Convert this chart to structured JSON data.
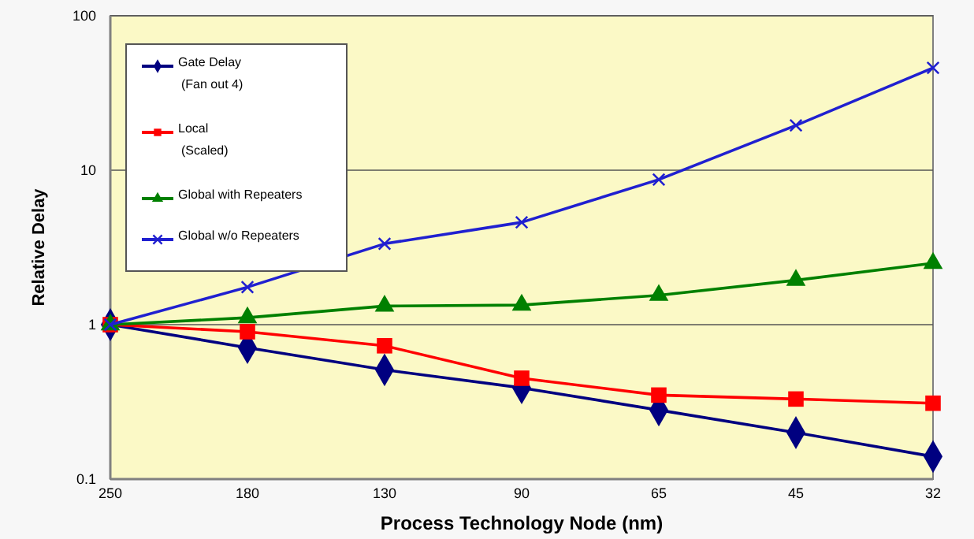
{
  "chart_data": {
    "type": "line",
    "xlabel": "Process Technology Node (nm)",
    "ylabel": "Relative Delay",
    "categories": [
      "250",
      "180",
      "130",
      "90",
      "65",
      "45",
      "32"
    ],
    "series": [
      {
        "name": "Gate Delay (Fan out 4)",
        "color": "#000080",
        "marker": "diamond",
        "values": [
          1,
          0.71,
          0.51,
          0.39,
          0.28,
          0.2,
          0.14
        ]
      },
      {
        "name": "Local (Scaled)",
        "color": "#ff0000",
        "marker": "square",
        "values": [
          1,
          0.9,
          0.73,
          0.45,
          0.35,
          0.33,
          0.31
        ]
      },
      {
        "name": "Global with Repeaters",
        "color": "#008000",
        "marker": "triangle",
        "values": [
          1,
          1.11,
          1.32,
          1.34,
          1.55,
          1.94,
          2.5
        ]
      },
      {
        "name": "Global w/o Repeaters",
        "color": "#2020d0",
        "marker": "cross",
        "values": [
          1,
          1.75,
          3.34,
          4.6,
          8.7,
          19.5,
          46
        ]
      }
    ],
    "log": "y",
    "ylim": [
      0.1,
      100
    ],
    "yticks": [
      0.1,
      1,
      10,
      100
    ],
    "grid": "y",
    "legend": "top left"
  }
}
